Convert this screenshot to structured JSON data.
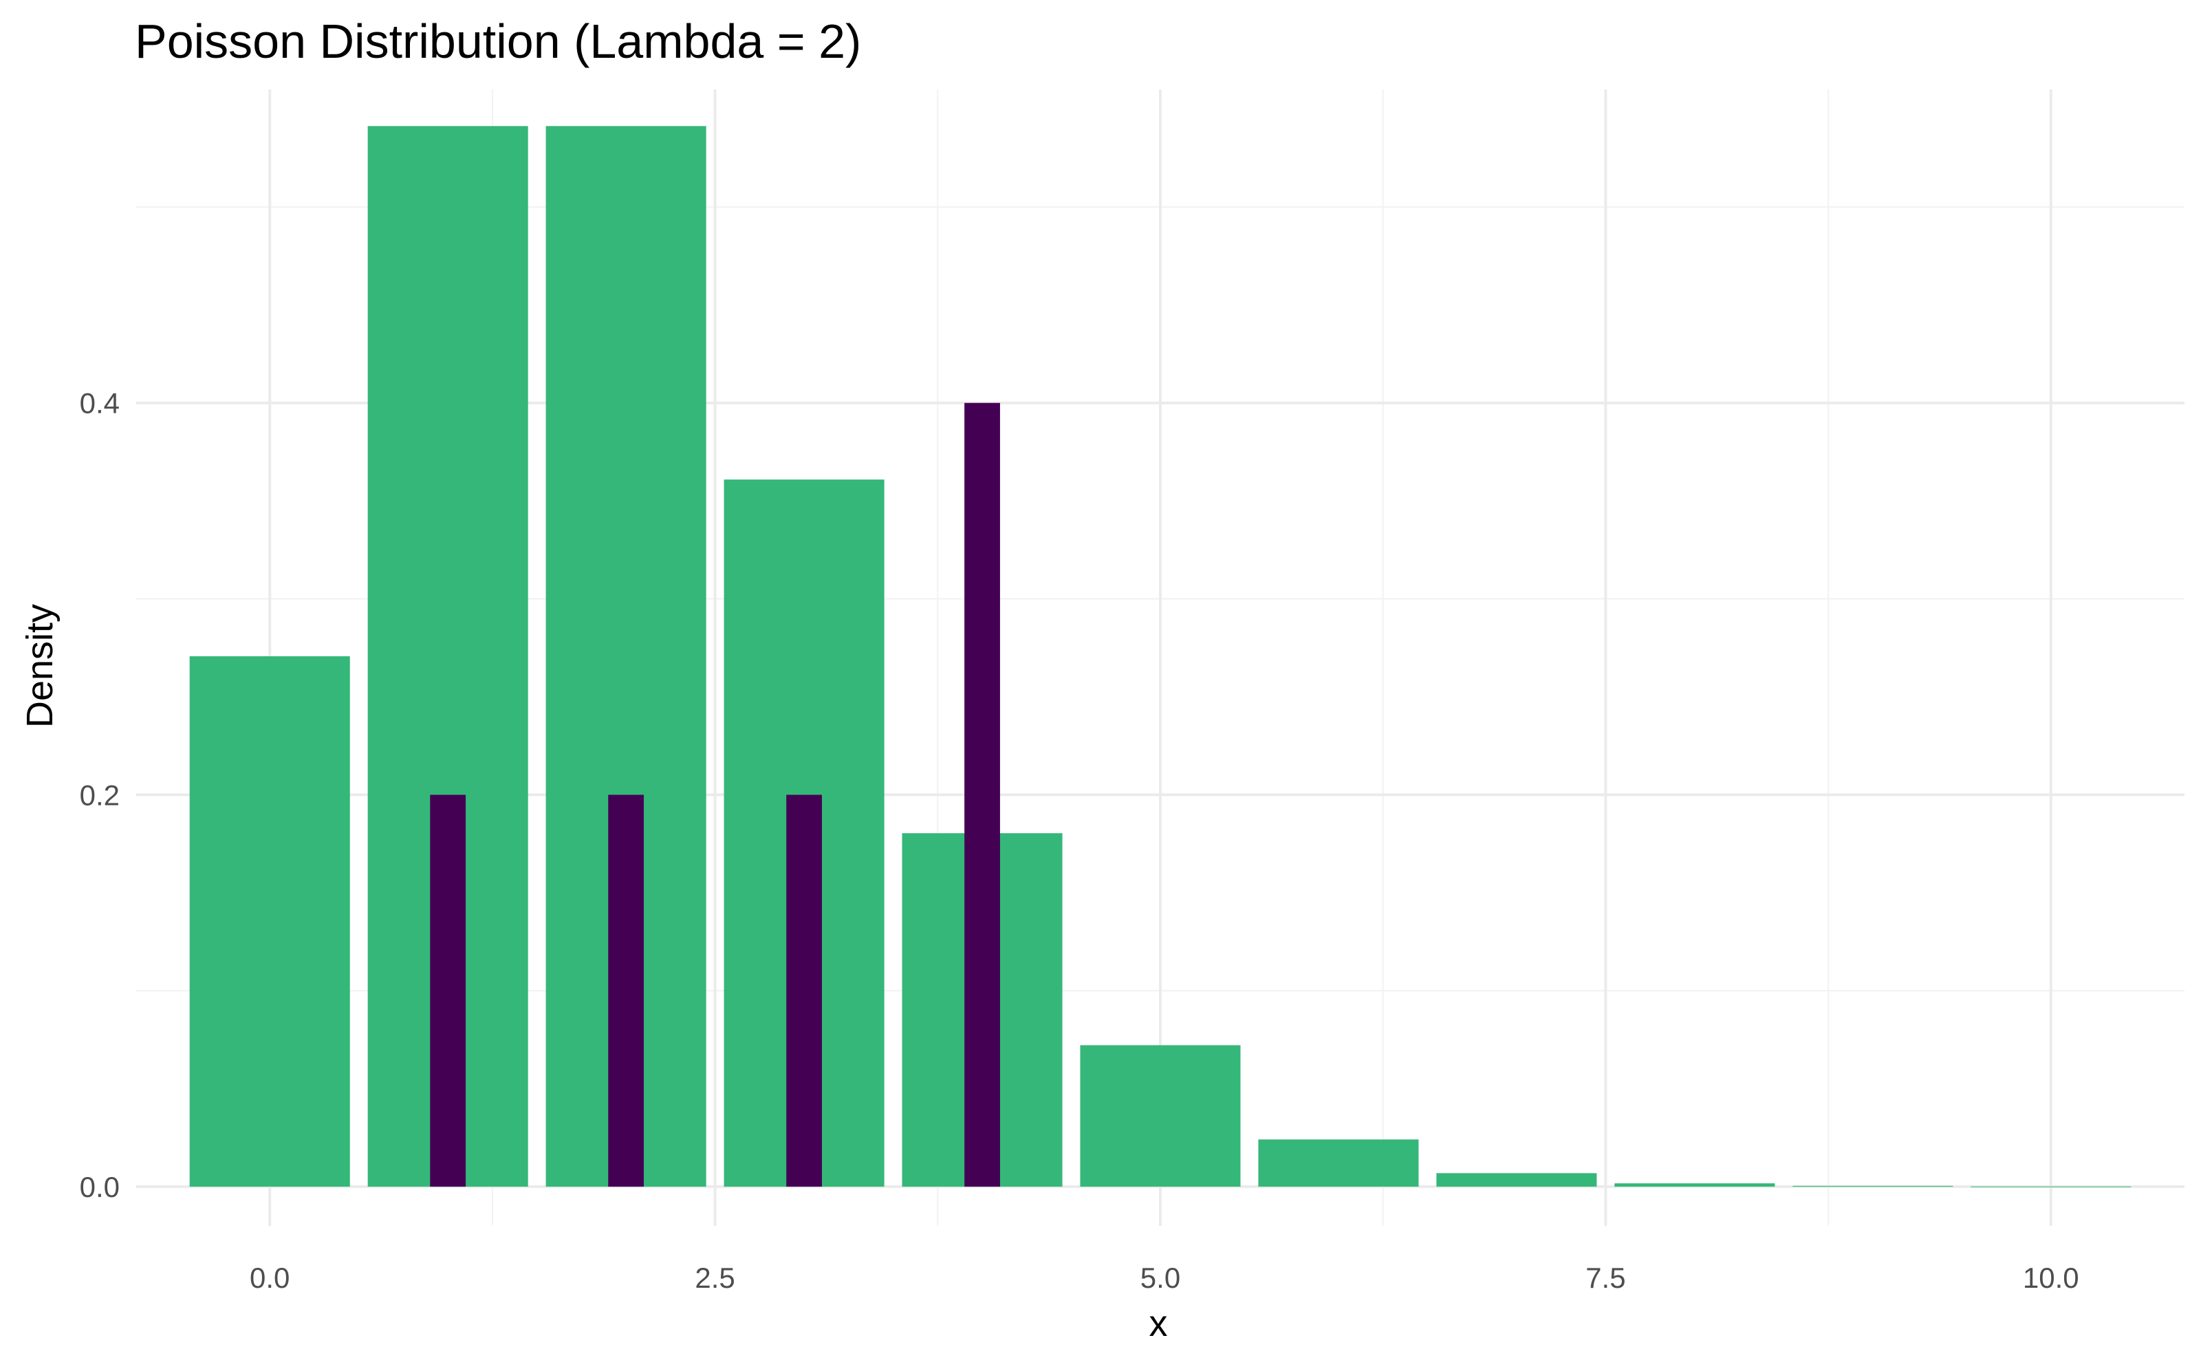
{
  "chart_data": {
    "type": "bar",
    "title": "Poisson Distribution (Lambda = 2)",
    "xlabel": "x",
    "ylabel": "Density",
    "xlim": [
      -0.75,
      10.75
    ],
    "ylim": [
      -0.02,
      0.56
    ],
    "x_ticks": [
      "0.0",
      "2.5",
      "5.0",
      "7.5",
      "10.0"
    ],
    "y_ticks": [
      "0.0",
      "0.2",
      "0.4"
    ],
    "grid": true,
    "legend": "none",
    "series": [
      {
        "color": "#35b779",
        "bar_width": 0.9,
        "x": [
          0,
          1,
          2,
          3,
          4,
          5,
          6,
          7,
          8,
          9,
          10
        ],
        "values": [
          0.2707,
          0.5413,
          0.5413,
          0.3609,
          0.1804,
          0.0722,
          0.0241,
          0.0069,
          0.0017,
          0.0004,
          0.0001
        ]
      },
      {
        "color": "#440154",
        "bar_width": 0.2,
        "x": [
          1,
          2,
          3,
          4
        ],
        "values": [
          0.2,
          0.2,
          0.2,
          0.4
        ]
      }
    ]
  }
}
